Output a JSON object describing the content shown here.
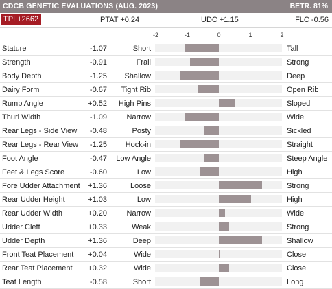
{
  "header": {
    "title": "CDCB GENETIC EVALUATIONS (AUG. 2023)",
    "betr": "BETR. 81%"
  },
  "summary": {
    "tpi": "TPI +2662",
    "ptat": "PTAT +0.24",
    "udc": "UDC +1.15",
    "flc": "FLC -0.56"
  },
  "colors": {
    "header_bg": "#8b8385",
    "tpi_badge": "#a51c24",
    "bar": "#9d9294",
    "track": "#f1f1f1"
  },
  "chart_data": {
    "type": "bar",
    "orientation": "horizontal",
    "scale_ticks": [
      "-2",
      "-1",
      "0",
      "1",
      "2"
    ],
    "xlim": [
      -2,
      2
    ],
    "traits": [
      {
        "name": "Stature",
        "value": -1.07,
        "value_label": "-1.07",
        "low": "Short",
        "high": "Tall"
      },
      {
        "name": "Strength",
        "value": -0.91,
        "value_label": "-0.91",
        "low": "Frail",
        "high": "Strong"
      },
      {
        "name": "Body Depth",
        "value": -1.25,
        "value_label": "-1.25",
        "low": "Shallow",
        "high": "Deep"
      },
      {
        "name": "Dairy Form",
        "value": -0.67,
        "value_label": "-0.67",
        "low": "Tight Rib",
        "high": "Open Rib"
      },
      {
        "name": "Rump Angle",
        "value": 0.52,
        "value_label": "+0.52",
        "low": "High Pins",
        "high": "Sloped"
      },
      {
        "name": "Thurl Width",
        "value": -1.09,
        "value_label": "-1.09",
        "low": "Narrow",
        "high": "Wide"
      },
      {
        "name": "Rear Legs - Side View",
        "value": -0.48,
        "value_label": "-0.48",
        "low": "Posty",
        "high": "Sickled"
      },
      {
        "name": "Rear Legs - Rear View",
        "value": -1.25,
        "value_label": "-1.25",
        "low": "Hock-in",
        "high": "Straight"
      },
      {
        "name": "Foot Angle",
        "value": -0.47,
        "value_label": "-0.47",
        "low": "Low Angle",
        "high": "Steep Angle"
      },
      {
        "name": "Feet & Legs Score",
        "value": -0.6,
        "value_label": "-0.60",
        "low": "Low",
        "high": "High"
      },
      {
        "name": "Fore Udder Attachment",
        "value": 1.36,
        "value_label": "+1.36",
        "low": "Loose",
        "high": "Strong"
      },
      {
        "name": "Rear Udder Height",
        "value": 1.03,
        "value_label": "+1.03",
        "low": "Low",
        "high": "High"
      },
      {
        "name": "Rear Udder Width",
        "value": 0.2,
        "value_label": "+0.20",
        "low": "Narrow",
        "high": "Wide"
      },
      {
        "name": "Udder Cleft",
        "value": 0.33,
        "value_label": "+0.33",
        "low": "Weak",
        "high": "Strong"
      },
      {
        "name": "Udder Depth",
        "value": 1.36,
        "value_label": "+1.36",
        "low": "Deep",
        "high": "Shallow"
      },
      {
        "name": "Front Teat Placement",
        "value": 0.04,
        "value_label": "+0.04",
        "low": "Wide",
        "high": "Close"
      },
      {
        "name": "Rear Teat Placement",
        "value": 0.32,
        "value_label": "+0.32",
        "low": "Wide",
        "high": "Close"
      },
      {
        "name": "Teat Length",
        "value": -0.58,
        "value_label": "-0.58",
        "low": "Short",
        "high": "Long"
      }
    ]
  }
}
